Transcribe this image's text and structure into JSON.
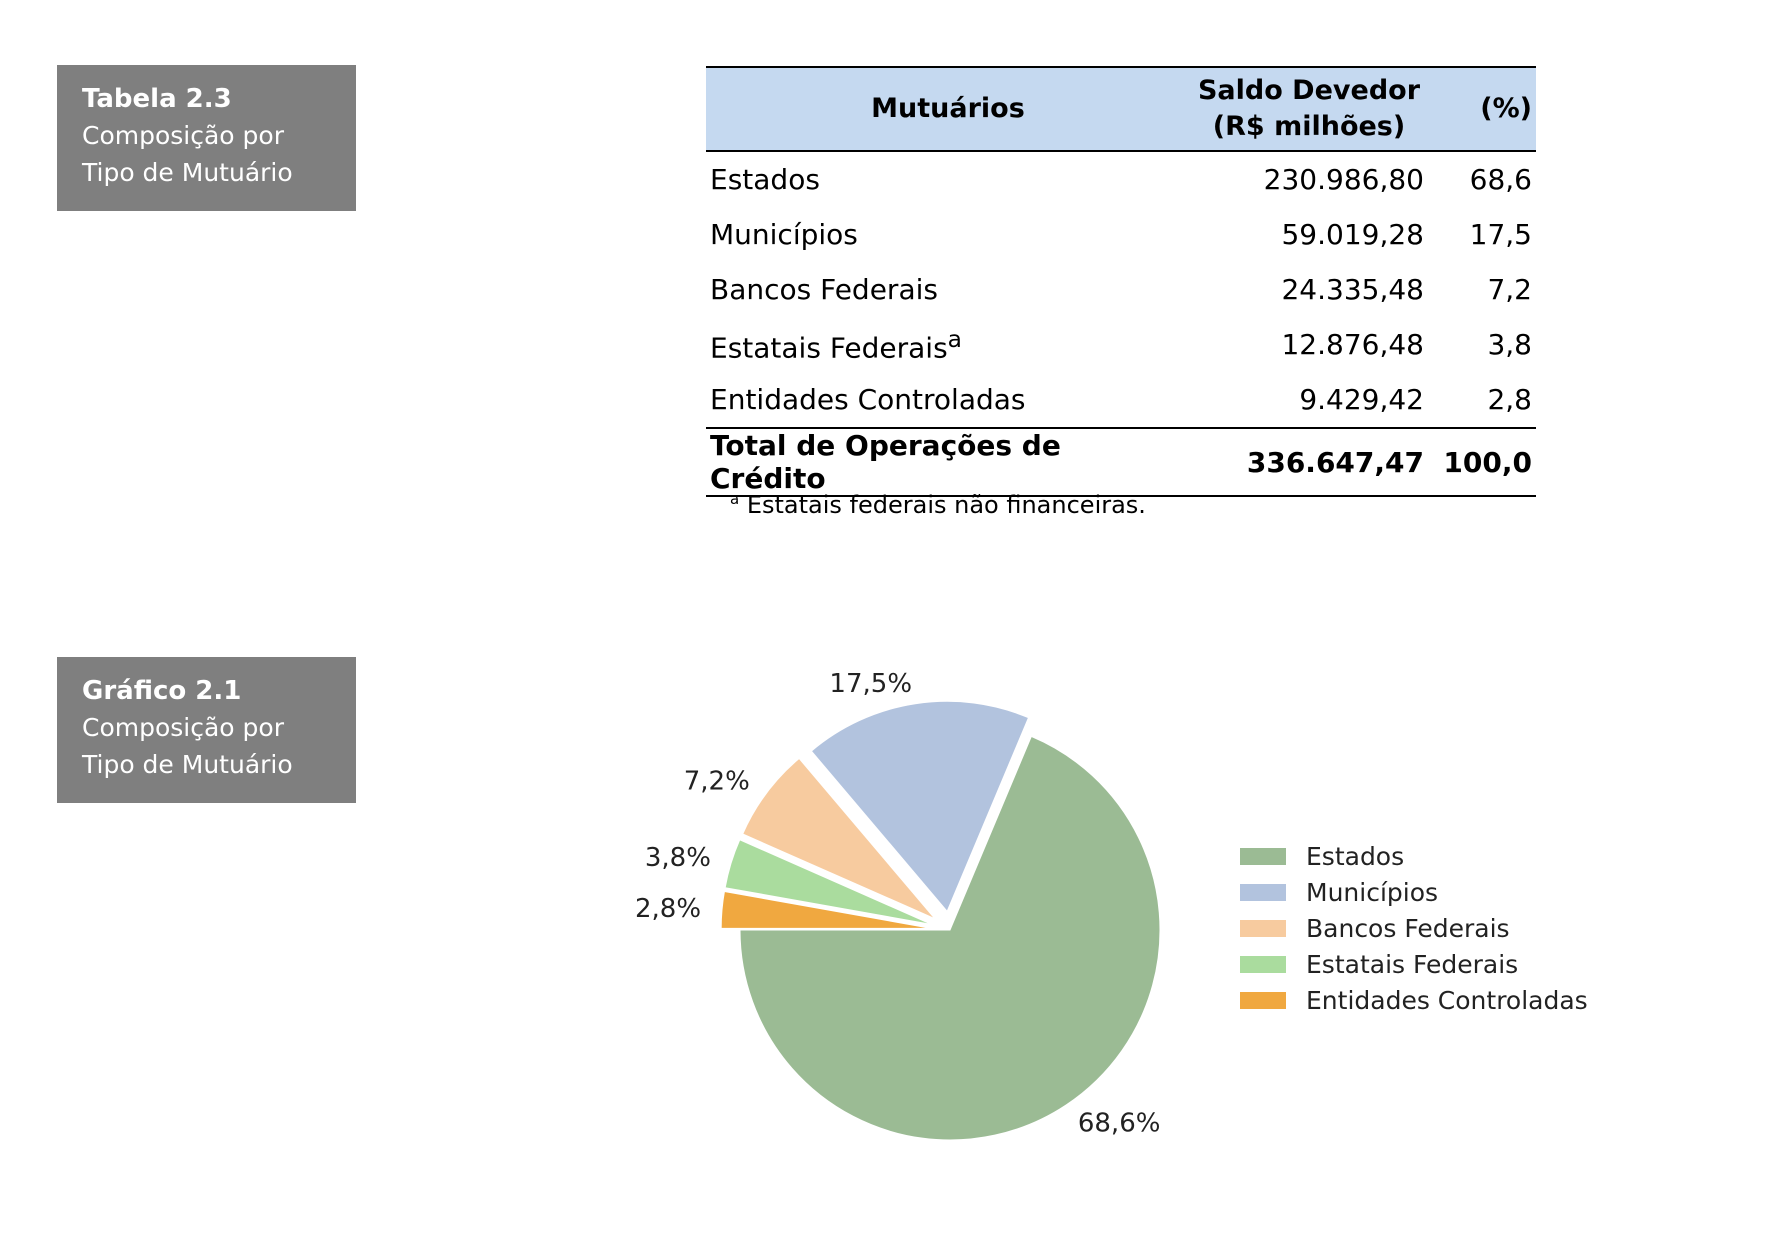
{
  "table_caption": {
    "number": "Tabela 2.3",
    "text": "Composição por Tipo de Mutuário"
  },
  "table": {
    "headers": {
      "mutuarios": "Mutuários",
      "saldo_line1": "Saldo Devedor",
      "saldo_line2": "(R$ milhões)",
      "pct": "(%)"
    },
    "rows": [
      {
        "name": "Estados",
        "saldo": "230.986,80",
        "pct": "68,6"
      },
      {
        "name": "Municípios",
        "saldo": "59.019,28",
        "pct": "17,5"
      },
      {
        "name": "Bancos Federais",
        "saldo": "24.335,48",
        "pct": "7,2"
      },
      {
        "name": "Estatais Federais",
        "sup": "a",
        "saldo": "12.876,48",
        "pct": "3,8"
      },
      {
        "name": "Entidades Controladas",
        "saldo": "9.429,42",
        "pct": "2,8"
      }
    ],
    "total": {
      "name": "Total de Operações de Crédito",
      "saldo": "336.647,47",
      "pct": "100,0"
    },
    "footnote": {
      "marker": "a",
      "text": " Estatais federais não financeiras."
    }
  },
  "chart_caption": {
    "number": "Gráfico 2.1",
    "text": "Composição por Tipo de Mutuário"
  },
  "chart_data": {
    "type": "pie",
    "slices": [
      {
        "label": "Estados",
        "value": 68.6,
        "display": "68,6%",
        "color": "#9bbb94",
        "explode": 0
      },
      {
        "label": "Municípios",
        "value": 17.5,
        "display": "17,5%",
        "color": "#b2c3de",
        "explode": 0.09
      },
      {
        "label": "Bancos Federais",
        "value": 7.2,
        "display": "7,2%",
        "color": "#f7cb9f",
        "explode": 0.09
      },
      {
        "label": "Estatais Federais",
        "value": 3.8,
        "display": "3,8%",
        "color": "#aadc9e",
        "explode": 0.09
      },
      {
        "label": "Entidades Controladas",
        "value": 2.8,
        "display": "2,8%",
        "color": "#f0a840",
        "explode": 0.09
      }
    ],
    "start_angle_deg": 180,
    "direction": "counterclockwise",
    "legend_position": "right"
  }
}
